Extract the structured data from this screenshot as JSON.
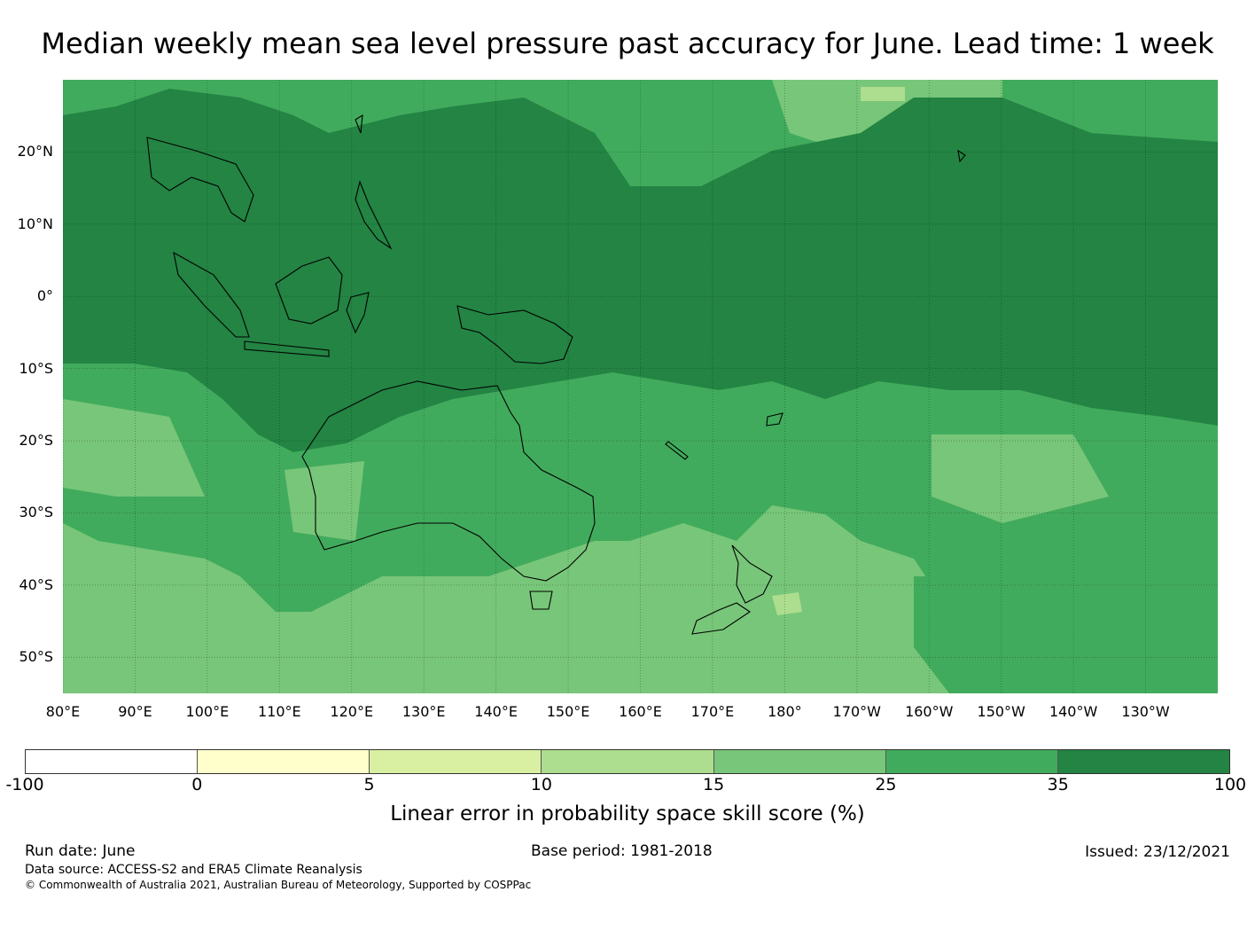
{
  "title": "Median weekly mean sea level pressure past accuracy for June. Lead time: 1 week",
  "map": {
    "extent": {
      "lon": [
        80,
        240
      ],
      "lat": [
        -55,
        30
      ]
    },
    "lat_labels": [
      "20°N",
      "10°N",
      "0°",
      "10°S",
      "20°S",
      "30°S",
      "40°S",
      "50°S"
    ],
    "lat_values": [
      20,
      10,
      0,
      -10,
      -20,
      -30,
      -40,
      -50
    ],
    "lon_labels": [
      "80°E",
      "90°E",
      "100°E",
      "110°E",
      "120°E",
      "130°E",
      "140°E",
      "150°E",
      "160°E",
      "170°E",
      "180°",
      "170°W",
      "160°W",
      "150°W",
      "140°W",
      "130°W"
    ],
    "lon_values": [
      80,
      90,
      100,
      110,
      120,
      130,
      140,
      150,
      160,
      170,
      180,
      190,
      200,
      210,
      220,
      230
    ],
    "gridlines": true,
    "colors": {
      "band_15_25": "#78c679",
      "band_25_35": "#41ab5d",
      "band_35_100": "#238443",
      "band_10_15": "#addd8e",
      "coastline": "#000000"
    }
  },
  "colorbar": {
    "colors": [
      "#ffffff",
      "#ffffcc",
      "#d9f0a3",
      "#addd8e",
      "#78c679",
      "#41ab5d",
      "#238443"
    ],
    "ticks": [
      "-100",
      "0",
      "5",
      "10",
      "15",
      "25",
      "35",
      "100"
    ],
    "label": "Linear error in probability space skill score (%)"
  },
  "footer": {
    "run_date": "Run date: June",
    "base_period": "Base period: 1981-2018",
    "issued": "Issued: 23/12/2021",
    "data_source": "Data source: ACCESS-S2 and ERA5 Climate Reanalysis",
    "copyright": "© Commonwealth of Australia 2021, Australian Bureau of Meteorology, Supported by COSPPac"
  }
}
